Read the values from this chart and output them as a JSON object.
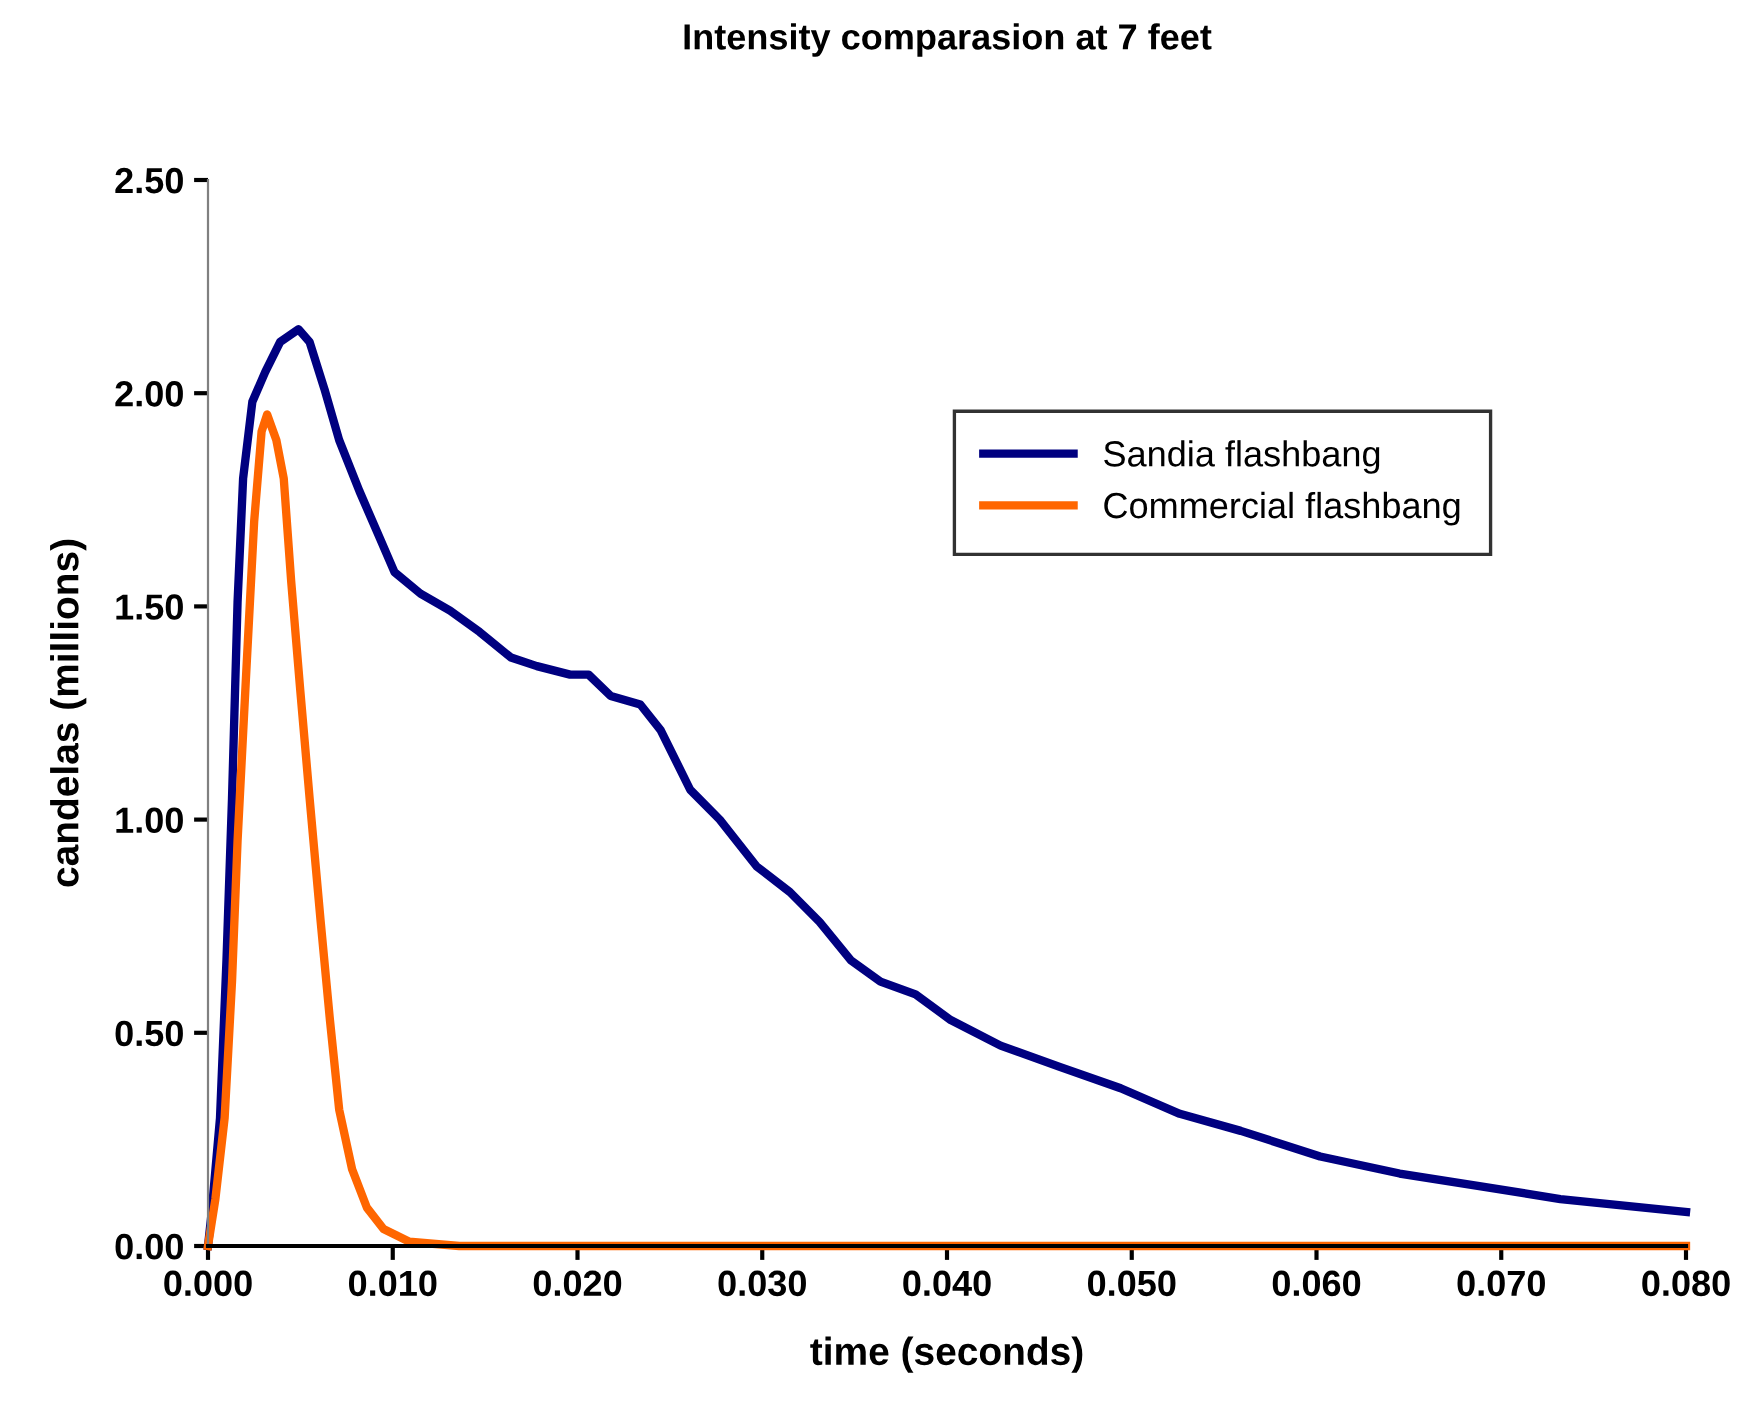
{
  "chart_data": {
    "type": "line",
    "title": "Intensity comparasion at 7 feet",
    "xlabel": "time (seconds)",
    "ylabel": "candelas (millions)",
    "xlim": [
      0,
      0.08
    ],
    "ylim": [
      0,
      2.5
    ],
    "xticks": [
      {
        "value": 0,
        "label": "0.000"
      },
      {
        "value": 0.01,
        "label": "0.010"
      },
      {
        "value": 0.02,
        "label": "0.020"
      },
      {
        "value": 0.03,
        "label": "0.030"
      },
      {
        "value": 0.04,
        "label": "0.040"
      },
      {
        "value": 0.05,
        "label": "0.050"
      },
      {
        "value": 0.06,
        "label": "0.060"
      },
      {
        "value": 0.07,
        "label": "0.070"
      },
      {
        "value": 0.08,
        "label": "0.080"
      }
    ],
    "yticks": [
      {
        "value": 0,
        "label": "0.00"
      },
      {
        "value": 0.5,
        "label": "0.50"
      },
      {
        "value": 1,
        "label": "1.00"
      },
      {
        "value": 1.5,
        "label": "1.50"
      },
      {
        "value": 2,
        "label": "2.00"
      },
      {
        "value": 2.5,
        "label": "2.50"
      }
    ],
    "grid": false,
    "legend": "top right",
    "marker": "none",
    "line_style": "solid",
    "series": [
      {
        "name": "Sandia flashbang",
        "color": "#000080",
        "x": [
          0,
          0.0002,
          0.00065,
          0.001,
          0.0013,
          0.0016,
          0.0019,
          0.0024,
          0.0031,
          0.0039,
          0.0049,
          0.0055,
          0.0063,
          0.0071,
          0.0082,
          0.0093,
          0.0101,
          0.0115,
          0.0131,
          0.0147,
          0.0164,
          0.0178,
          0.0196,
          0.0206,
          0.0218,
          0.0234,
          0.0245,
          0.0261,
          0.0277,
          0.0297,
          0.0315,
          0.0331,
          0.0348,
          0.0364,
          0.0383,
          0.0402,
          0.0429,
          0.0461,
          0.0494,
          0.0526,
          0.0559,
          0.0602,
          0.0645,
          0.0689,
          0.0732,
          0.08
        ],
        "values": [
          0,
          0.08,
          0.3,
          0.67,
          1.05,
          1.51,
          1.8,
          1.98,
          2.05,
          2.12,
          2.15,
          2.12,
          2.01,
          1.89,
          1.77,
          1.66,
          1.58,
          1.53,
          1.49,
          1.44,
          1.38,
          1.36,
          1.34,
          1.34,
          1.29,
          1.27,
          1.21,
          1.07,
          1.0,
          0.89,
          0.83,
          0.76,
          0.67,
          0.62,
          0.59,
          0.53,
          0.47,
          0.42,
          0.37,
          0.31,
          0.27,
          0.21,
          0.17,
          0.14,
          0.11,
          0.08
        ]
      },
      {
        "name": "Commercial flashbang",
        "color": "#ff6600",
        "x": [
          0,
          0.0004,
          0.0009,
          0.0013,
          0.0016,
          0.0021,
          0.0025,
          0.0029,
          0.0032,
          0.0037,
          0.0041,
          0.0045,
          0.005,
          0.0055,
          0.0061,
          0.0066,
          0.0071,
          0.0078,
          0.0086,
          0.0095,
          0.0109,
          0.0136,
          0.08
        ],
        "values": [
          0,
          0.11,
          0.3,
          0.62,
          0.95,
          1.37,
          1.7,
          1.91,
          1.95,
          1.89,
          1.8,
          1.56,
          1.3,
          1.05,
          0.76,
          0.53,
          0.32,
          0.18,
          0.09,
          0.04,
          0.01,
          0,
          0
        ]
      }
    ]
  }
}
